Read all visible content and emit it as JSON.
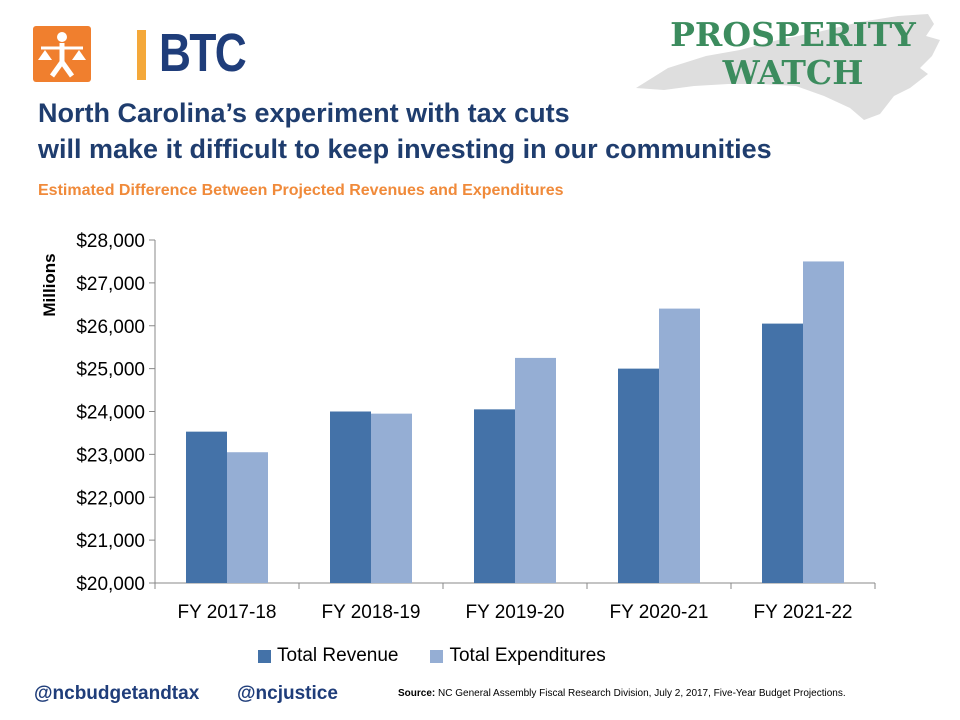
{
  "logos": {
    "btc_text": "BTC",
    "btc_icon": "person-scale-icon",
    "pw_line1": "PROSPERITY",
    "pw_line2": "WATCH"
  },
  "header": {
    "title_line1": "North Carolina’s experiment with tax cuts",
    "title_line2": "will make it difficult to keep investing in our communities"
  },
  "footer": {
    "handle1": "@ncbudgetandtax",
    "handle2": "@ncjustice",
    "source_label": "Source:",
    "source_text": "NC General Assembly Fiscal Research Division, July 2, 2017, Five-Year Budget Projections."
  },
  "colors": {
    "revenue": "#4472a8",
    "expenditures": "#95aed4",
    "title": "#1f3d6e",
    "subtitle": "#f08a3a",
    "brand_orange": "#f07f2e",
    "brand_blue": "#1f3d7a",
    "pw_green": "#3c8c5e",
    "map_gray": "#dedede"
  },
  "chart_data": {
    "type": "bar",
    "title": "Estimated Difference Between Projected Revenues and Expenditures",
    "ylabel": "Millions",
    "xlabel": "",
    "categories": [
      "FY 2017-18",
      "FY 2018-19",
      "FY 2019-20",
      "FY 2020-21",
      "FY 2021-22"
    ],
    "series": [
      {
        "name": "Total Revenue",
        "values": [
          23530,
          24000,
          24050,
          25000,
          26050
        ]
      },
      {
        "name": "Total Expenditures",
        "values": [
          23050,
          23950,
          25250,
          26400,
          27500
        ]
      }
    ],
    "ylim": [
      20000,
      28000
    ],
    "yticks": [
      20000,
      21000,
      22000,
      23000,
      24000,
      25000,
      26000,
      27000,
      28000
    ],
    "ytick_labels": [
      "$20,000",
      "$21,000",
      "$22,000",
      "$23,000",
      "$24,000",
      "$25,000",
      "$26,000",
      "$27,000",
      "$28,000"
    ],
    "grid": false,
    "legend_position": "bottom"
  }
}
